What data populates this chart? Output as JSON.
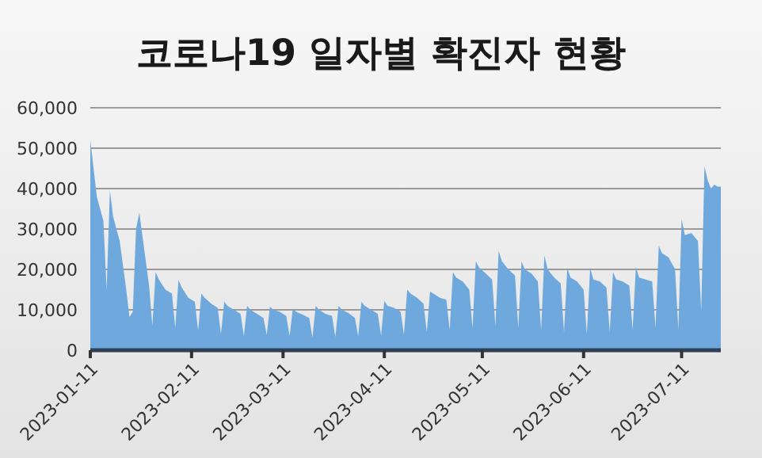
{
  "chart_data": {
    "type": "area",
    "title": "코로나19 일자별 확진자 현황",
    "color": "#6fa8dc",
    "grid": "y",
    "x": [
      "2023-01-11",
      "2023-01-13",
      "2023-01-15",
      "2023-01-16",
      "2023-01-17",
      "2023-01-18",
      "2023-01-20",
      "2023-01-22",
      "2023-01-23",
      "2023-01-24",
      "2023-01-25",
      "2023-01-26",
      "2023-01-27",
      "2023-01-29",
      "2023-01-30",
      "2023-01-31",
      "2023-02-01",
      "2023-02-03",
      "2023-02-05",
      "2023-02-06",
      "2023-02-07",
      "2023-02-08",
      "2023-02-10",
      "2023-02-12",
      "2023-02-13",
      "2023-02-14",
      "2023-02-15",
      "2023-02-17",
      "2023-02-19",
      "2023-02-20",
      "2023-02-21",
      "2023-02-22",
      "2023-02-24",
      "2023-02-26",
      "2023-02-27",
      "2023-02-28",
      "2023-03-01",
      "2023-03-03",
      "2023-03-05",
      "2023-03-06",
      "2023-03-07",
      "2023-03-08",
      "2023-03-10",
      "2023-03-12",
      "2023-03-13",
      "2023-03-14",
      "2023-03-15",
      "2023-03-17",
      "2023-03-19",
      "2023-03-20",
      "2023-03-21",
      "2023-03-22",
      "2023-03-24",
      "2023-03-26",
      "2023-03-27",
      "2023-03-28",
      "2023-03-29",
      "2023-03-31",
      "2023-04-02",
      "2023-04-03",
      "2023-04-04",
      "2023-04-05",
      "2023-04-07",
      "2023-04-09",
      "2023-04-10",
      "2023-04-11",
      "2023-04-12",
      "2023-04-14",
      "2023-04-16",
      "2023-04-17",
      "2023-04-18",
      "2023-04-19",
      "2023-04-21",
      "2023-04-23",
      "2023-04-24",
      "2023-04-25",
      "2023-04-26",
      "2023-04-28",
      "2023-04-30",
      "2023-05-01",
      "2023-05-02",
      "2023-05-03",
      "2023-05-05",
      "2023-05-07",
      "2023-05-08",
      "2023-05-09",
      "2023-05-10",
      "2023-05-12",
      "2023-05-14",
      "2023-05-15",
      "2023-05-16",
      "2023-05-17",
      "2023-05-19",
      "2023-05-21",
      "2023-05-22",
      "2023-05-23",
      "2023-05-24",
      "2023-05-26",
      "2023-05-28",
      "2023-05-29",
      "2023-05-30",
      "2023-05-31",
      "2023-06-02",
      "2023-06-04",
      "2023-06-05",
      "2023-06-06",
      "2023-06-07",
      "2023-06-09",
      "2023-06-11",
      "2023-06-12",
      "2023-06-13",
      "2023-06-14",
      "2023-06-16",
      "2023-06-18",
      "2023-06-19",
      "2023-06-20",
      "2023-06-21",
      "2023-06-23",
      "2023-06-25",
      "2023-06-26",
      "2023-06-27",
      "2023-06-28",
      "2023-06-30",
      "2023-07-02",
      "2023-07-03",
      "2023-07-04",
      "2023-07-05",
      "2023-07-07",
      "2023-07-09",
      "2023-07-10",
      "2023-07-11",
      "2023-07-12",
      "2023-07-14",
      "2023-07-16",
      "2023-07-17",
      "2023-07-18",
      "2023-07-19",
      "2023-07-20",
      "2023-07-21",
      "2023-07-22",
      "2023-07-23"
    ],
    "values": [
      52000,
      38000,
      32000,
      15000,
      39500,
      33000,
      27000,
      15000,
      8200,
      9500,
      30000,
      34000,
      28000,
      16000,
      6000,
      19300,
      17500,
      15000,
      14000,
      5500,
      17400,
      15500,
      13000,
      12000,
      4800,
      14000,
      13000,
      11500,
      10500,
      4000,
      12000,
      11000,
      10000,
      9000,
      3500,
      11000,
      10000,
      9000,
      8000,
      3800,
      10800,
      10000,
      9500,
      8500,
      3500,
      10300,
      9500,
      8800,
      8000,
      3200,
      11000,
      10000,
      9000,
      8500,
      3300,
      11000,
      10000,
      9200,
      8000,
      3500,
      12000,
      11000,
      10000,
      9000,
      3700,
      12200,
      11000,
      10500,
      9500,
      3800,
      15000,
      14000,
      13000,
      11500,
      4500,
      14500,
      14000,
      13000,
      12500,
      5000,
      19300,
      18000,
      17000,
      15000,
      5500,
      22000,
      20500,
      19000,
      17500,
      6000,
      24600,
      22000,
      20000,
      18500,
      5500,
      22000,
      20000,
      19000,
      17000,
      5000,
      23500,
      20000,
      18000,
      16500,
      4500,
      20400,
      18000,
      17000,
      15000,
      4000,
      20400,
      17500,
      17000,
      15500,
      4500,
      19300,
      17500,
      17000,
      16000,
      5000,
      20600,
      18000,
      17500,
      17000,
      5500,
      25900,
      24000,
      23000,
      20000,
      5000,
      32400,
      28500,
      29000,
      27000,
      9500,
      45500,
      42000,
      40000,
      41000,
      40500,
      40500
    ],
    "xlim": [
      "2023-01-11",
      "2023-07-23"
    ],
    "xticks": [
      "2023-01-11",
      "2023-02-11",
      "2023-03-11",
      "2023-04-11",
      "2023-05-11",
      "2023-06-11",
      "2023-07-11"
    ],
    "ylim": [
      0,
      60000
    ],
    "yticks": [
      {
        "value": 0,
        "label": "0"
      },
      {
        "value": 10000,
        "label": "10,000"
      },
      {
        "value": 20000,
        "label": "20,000"
      },
      {
        "value": 30000,
        "label": "30,000"
      },
      {
        "value": 40000,
        "label": "40,000"
      },
      {
        "value": 50000,
        "label": "50,000"
      },
      {
        "value": 60000,
        "label": "60,000"
      }
    ]
  }
}
